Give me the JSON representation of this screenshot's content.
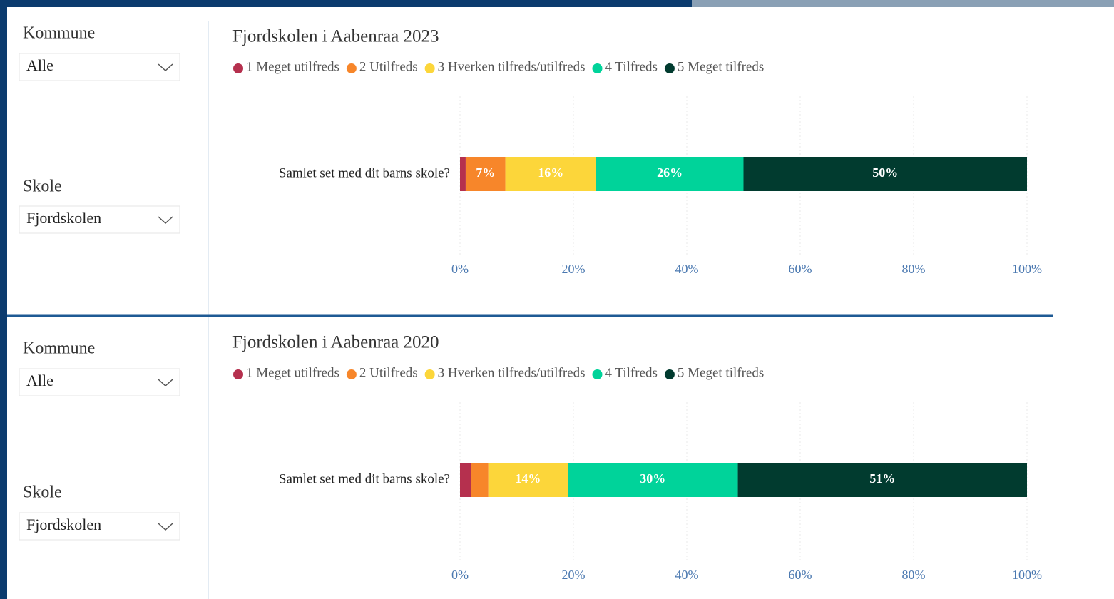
{
  "panels": [
    {
      "slicers": [
        {
          "label": "Kommune",
          "value": "Alle"
        },
        {
          "label": "Skole",
          "value": "Fjordskolen"
        }
      ]
    },
    {
      "slicers": [
        {
          "label": "Kommune",
          "value": "Alle"
        },
        {
          "label": "Skole",
          "value": "Fjordskolen"
        }
      ]
    }
  ],
  "chart_data": [
    {
      "type": "stacked_bar",
      "title": "Fjordskolen i Aabenraa 2023",
      "categories": [
        "Samlet set med dit barns skole?"
      ],
      "series": [
        {
          "name": "1 Meget utilfreds",
          "color": "#b5304e",
          "values": [
            1
          ],
          "value_labels": [
            null
          ]
        },
        {
          "name": "2 Utilfreds",
          "color": "#f7862a",
          "values": [
            7
          ],
          "value_labels": [
            "7%"
          ]
        },
        {
          "name": "3 Hverken tilfreds/utilfreds",
          "color": "#fcd63a",
          "values": [
            16
          ],
          "value_labels": [
            "16%"
          ]
        },
        {
          "name": "4 Tilfreds",
          "color": "#00d39a",
          "values": [
            26
          ],
          "value_labels": [
            "26%"
          ]
        },
        {
          "name": "5 Meget tilfreds",
          "color": "#013b2f",
          "values": [
            50
          ],
          "value_labels": [
            "50%"
          ]
        }
      ],
      "xlim": [
        0,
        100
      ],
      "xticks": [
        {
          "value": 0,
          "label": "0%"
        },
        {
          "value": 20,
          "label": "20%"
        },
        {
          "value": 40,
          "label": "40%"
        },
        {
          "value": 60,
          "label": "60%"
        },
        {
          "value": 80,
          "label": "80%"
        },
        {
          "value": 100,
          "label": "100%"
        }
      ],
      "grid": true
    },
    {
      "type": "stacked_bar",
      "title": "Fjordskolen i Aabenraa 2020",
      "categories": [
        "Samlet set med dit barns skole?"
      ],
      "series": [
        {
          "name": "1 Meget utilfreds",
          "color": "#b5304e",
          "values": [
            2
          ],
          "value_labels": [
            null
          ]
        },
        {
          "name": "2 Utilfreds",
          "color": "#f7862a",
          "values": [
            3
          ],
          "value_labels": [
            null
          ]
        },
        {
          "name": "3 Hverken tilfreds/utilfreds",
          "color": "#fcd63a",
          "values": [
            14
          ],
          "value_labels": [
            "14%"
          ]
        },
        {
          "name": "4 Tilfreds",
          "color": "#00d39a",
          "values": [
            30
          ],
          "value_labels": [
            "30%"
          ]
        },
        {
          "name": "5 Meget tilfreds",
          "color": "#013b2f",
          "values": [
            51
          ],
          "value_labels": [
            "51%"
          ]
        }
      ],
      "xlim": [
        0,
        100
      ],
      "xticks": [
        {
          "value": 0,
          "label": "0%"
        },
        {
          "value": 20,
          "label": "20%"
        },
        {
          "value": 40,
          "label": "40%"
        },
        {
          "value": 60,
          "label": "60%"
        },
        {
          "value": 80,
          "label": "80%"
        },
        {
          "value": 100,
          "label": "100%"
        }
      ],
      "grid": true
    }
  ]
}
